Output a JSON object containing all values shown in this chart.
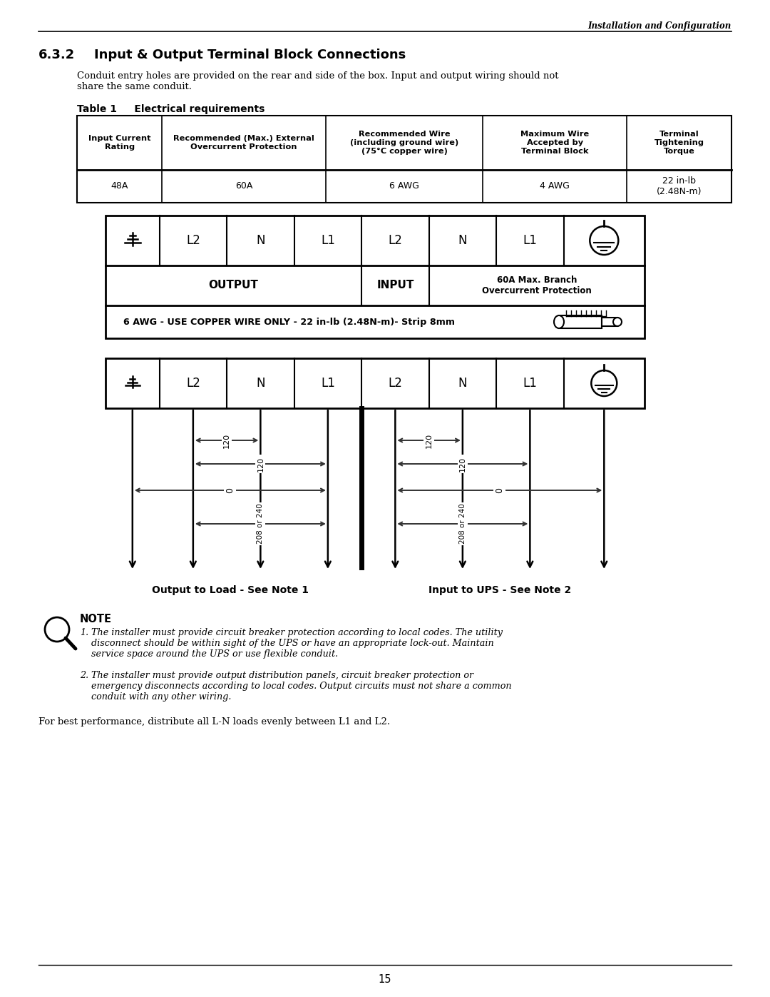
{
  "header_right": "Installation and Configuration",
  "section": "6.3.2",
  "section_title": "Input & Output Terminal Block Connections",
  "intro_text": "Conduit entry holes are provided on the rear and side of the box. Input and output wiring should not\nshare the same conduit.",
  "table_title": "Table 1     Electrical requirements",
  "table_headers": [
    "Input Current\nRating",
    "Recommended (Max.) External\nOvercurrent Protection",
    "Recommended Wire\n(including ground wire)\n(75°C copper wire)",
    "Maximum Wire\nAccepted by\nTerminal Block",
    "Terminal\nTightening\nTorque"
  ],
  "table_data": [
    [
      "48A",
      "60A",
      "6 AWG",
      "4 AWG",
      "22 in-lb\n(2.48N-m)"
    ]
  ],
  "terminal_labels": [
    "L2",
    "N",
    "L1",
    "L2",
    "N",
    "L1"
  ],
  "output_label": "OUTPUT",
  "input_label": "INPUT",
  "branch_label": "60A Max. Branch\nOvercurrent Protection",
  "wire_note": "6 AWG - USE COPPER WIRE ONLY - 22 in-lb (2.48N-m)- Strip 8mm",
  "output_diagram_label": "Output to Load - See Note 1",
  "input_diagram_label": "Input to UPS - See Note 2",
  "note_title": "NOTE",
  "note1": "The installer must provide circuit breaker protection according to local codes. The utility\ndisconnect should be within sight of the UPS or have an appropriate lock-out. Maintain\nservice space around the UPS or use flexible conduit.",
  "note2": "The installer must provide output distribution panels, circuit breaker protection or\nemergency disconnects according to local codes. Output circuits must not share a common\nconduit with any other wiring.",
  "footer_text": "For best performance, distribute all L-N loads evenly between L1 and L2.",
  "page_num": "15",
  "bg_color": "#ffffff",
  "text_color": "#000000"
}
